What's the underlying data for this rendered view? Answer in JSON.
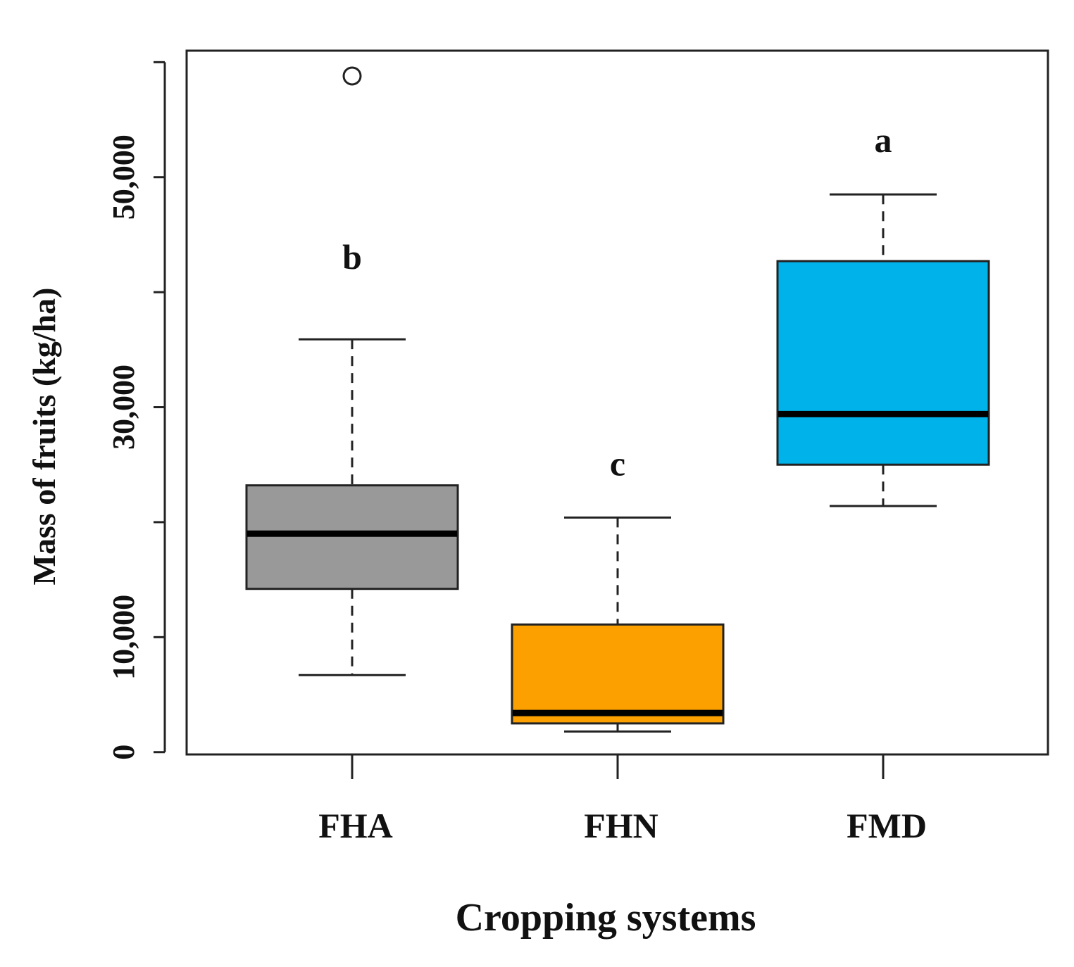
{
  "chart_data": {
    "type": "boxplot",
    "title": "",
    "xlabel": "Cropping systems",
    "ylabel": "Mass of fruits (kg/ha)",
    "ylim": [
      -200,
      61000
    ],
    "y_ticks": [
      0,
      10000,
      20000,
      30000,
      40000,
      50000,
      60000
    ],
    "y_tick_labels": [
      "0",
      "10,000",
      "",
      "30,000",
      "",
      "50,000",
      ""
    ],
    "categories": [
      "FHA",
      "FHN",
      "FMD"
    ],
    "boxes": [
      {
        "name": "FHA",
        "color": "#999999",
        "whisker_low": 6700,
        "q1": 14200,
        "median": 19000,
        "q3": 23200,
        "whisker_high": 35900,
        "outliers": [
          58800
        ],
        "letter": "b"
      },
      {
        "name": "FHN",
        "color": "#FCA000",
        "whisker_low": 1800,
        "q1": 2500,
        "median": 3400,
        "q3": 11100,
        "whisker_high": 20400,
        "outliers": [],
        "letter": "c"
      },
      {
        "name": "FMD",
        "color": "#00B2EA",
        "whisker_low": 21400,
        "q1": 25000,
        "median": 29400,
        "q3": 42700,
        "whisker_high": 48500,
        "outliers": [],
        "letter": "a"
      }
    ]
  }
}
